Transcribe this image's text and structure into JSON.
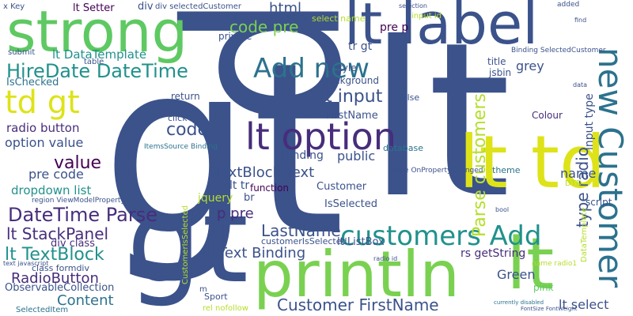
{
  "words": [
    {
      "text": "gt",
      "color": "#3b528b"
    },
    {
      "text": "lt",
      "color": "#3b528b"
    },
    {
      "text": "p",
      "color": "#3b528b"
    },
    {
      "text": "gt",
      "color": "#3b528b"
    },
    {
      "text": "println",
      "color": "#7ad151"
    },
    {
      "text": "strong",
      "color": "#5ec962"
    },
    {
      "text": "lt label",
      "color": "#3b528b"
    },
    {
      "text": "lt td",
      "color": "#dde318"
    },
    {
      "text": "lt",
      "color": "#7ad151"
    },
    {
      "text": "new Customer",
      "color": "#2c728e"
    },
    {
      "text": "lt option",
      "color": "#472d7b"
    },
    {
      "text": "customers Add",
      "color": "#21918c"
    },
    {
      "text": "Add new",
      "color": "#2c728e"
    },
    {
      "text": "HireDate DateTime",
      "color": "#21918c"
    },
    {
      "text": "td gt",
      "color": "#dde318"
    },
    {
      "text": "DateTime Parse",
      "color": "#472d7b"
    },
    {
      "text": "Customer FirstName",
      "color": "#3b528b"
    },
    {
      "text": "lt TextBlock",
      "color": "#21918c"
    },
    {
      "text": "lt StackPanel",
      "color": "#472d7b"
    },
    {
      "text": "code pre",
      "color": "#7ad151"
    },
    {
      "text": "Parse customers",
      "color": "#b5de2b"
    },
    {
      "text": "value",
      "color": "#440154"
    },
    {
      "text": "code",
      "color": "#3b528b"
    },
    {
      "text": "lt input",
      "color": "#3b528b"
    },
    {
      "text": "type radio",
      "color": "#3b528b"
    },
    {
      "text": "RadioButton",
      "color": "#472d7b"
    },
    {
      "text": "Content",
      "color": "#2c728e"
    },
    {
      "text": "LastName",
      "color": "#3b528b"
    },
    {
      "text": "TextBlock Text",
      "color": "#3b528b"
    },
    {
      "text": "Text Binding",
      "color": "#3b528b"
    },
    {
      "text": "html",
      "color": "#3b528b"
    },
    {
      "text": "radio button",
      "color": "#472d7b"
    },
    {
      "text": "option value",
      "color": "#3b528b"
    },
    {
      "text": "pre code",
      "color": "#3b528b"
    },
    {
      "text": "lt DataTemplate",
      "color": "#21918c"
    },
    {
      "text": "dropdown list",
      "color": "#21918c"
    },
    {
      "text": "p pre",
      "color": "#472d7b"
    },
    {
      "text": "lt select",
      "color": "#3b528b"
    },
    {
      "text": "Green",
      "color": "#3b528b"
    },
    {
      "text": "grey",
      "color": "#3b528b"
    },
    {
      "text": "name",
      "color": "#3b528b"
    },
    {
      "text": "public",
      "color": "#3b528b"
    },
    {
      "text": "Binding",
      "color": "#3b528b"
    },
    {
      "text": "lt tr",
      "color": "#3b528b"
    },
    {
      "text": "ObservableCollection",
      "color": "#3b528b"
    },
    {
      "text": "div class",
      "color": "#472d7b"
    },
    {
      "text": "lt Setter",
      "color": "#440154"
    },
    {
      "text": "div",
      "color": "#3b528b"
    },
    {
      "text": "IsChecked",
      "color": "#2c728e"
    },
    {
      "text": "tr gt",
      "color": "#3b528b"
    },
    {
      "text": "pre p",
      "color": "#440154"
    },
    {
      "text": "rs getString",
      "color": "#472d7b"
    },
    {
      "text": "lt ListBox",
      "color": "#3b528b"
    },
    {
      "text": "IsSelected",
      "color": "#3b528b"
    },
    {
      "text": "FirstName",
      "color": "#3b528b"
    },
    {
      "text": "Customer",
      "color": "#3b528b"
    },
    {
      "text": "jquery",
      "color": "#b5de2b"
    },
    {
      "text": "br",
      "color": "#3b528b"
    },
    {
      "text": "Colour",
      "color": "#472d7b"
    },
    {
      "text": "pink",
      "color": "#5ec962"
    },
    {
      "text": "script",
      "color": "#3b528b"
    },
    {
      "text": "input type",
      "color": "#3b528b"
    },
    {
      "text": "background",
      "color": "#3b528b"
    },
    {
      "text": "function",
      "color": "#440154"
    },
    {
      "text": "return",
      "color": "#3b528b"
    },
    {
      "text": "href",
      "color": "#3b528b"
    },
    {
      "text": "Sport",
      "color": "#3b528b"
    },
    {
      "text": "SelectedItem",
      "color": "#2c728e"
    },
    {
      "text": "lt style",
      "color": "#3b528b"
    },
    {
      "text": "private",
      "color": "#3b528b"
    },
    {
      "text": "jsbin",
      "color": "#3b528b"
    },
    {
      "text": "title",
      "color": "#3b528b"
    },
    {
      "text": "set",
      "color": "#3b528b"
    },
    {
      "text": "want",
      "color": "#3b528b"
    },
    {
      "text": "select name",
      "color": "#b5de2b"
    },
    {
      "text": "database",
      "color": "#2c728e"
    },
    {
      "text": "theme",
      "color": "#2c728e"
    },
    {
      "text": "false",
      "color": "#3b528b"
    },
    {
      "text": "class formdiv",
      "color": "#3b528b"
    },
    {
      "text": "table",
      "color": "#3b528b"
    },
    {
      "text": "click",
      "color": "#3b528b"
    },
    {
      "text": "submit",
      "color": "#3b528b"
    },
    {
      "text": "x Key",
      "color": "#3b528b"
    },
    {
      "text": "div selectedCustomer",
      "color": "#3b528b"
    },
    {
      "text": "input id",
      "color": "#b5de2b"
    },
    {
      "text": "Binding SelectedCustomer",
      "color": "#3b528b"
    },
    {
      "text": "region ViewModelProperty",
      "color": "#3b528b"
    },
    {
      "text": "customerIsSelected",
      "color": "#3b528b"
    },
    {
      "text": "name radio1",
      "color": "#b5de2b"
    },
    {
      "text": "value OnPropertyChanged",
      "color": "#3b528b"
    },
    {
      "text": "ItemsSource Binding",
      "color": "#2c728e"
    },
    {
      "text": "added",
      "color": "#3b528b"
    },
    {
      "text": "selection",
      "color": "#3b528b"
    },
    {
      "text": "find",
      "color": "#3b528b"
    },
    {
      "text": "data",
      "color": "#3b528b"
    },
    {
      "text": "bool",
      "color": "#3b528b"
    },
    {
      "text": "m",
      "color": "#3b528b"
    },
    {
      "text": "text javascript",
      "color": "#3b528b"
    },
    {
      "text": "radio id",
      "color": "#3b528b"
    },
    {
      "text": "CustomerIsSelected",
      "color": "#b5de2b"
    },
    {
      "text": "DataTemplate",
      "color": "#b5de2b"
    },
    {
      "text": "DTD",
      "color": "#b5de2b"
    },
    {
      "text": "rel nofollow",
      "color": "#b5de2b"
    },
    {
      "text": "FontSize FontWeight",
      "color": "#3b528b"
    },
    {
      "text": "currently disabled",
      "color": "#2c728e"
    }
  ]
}
